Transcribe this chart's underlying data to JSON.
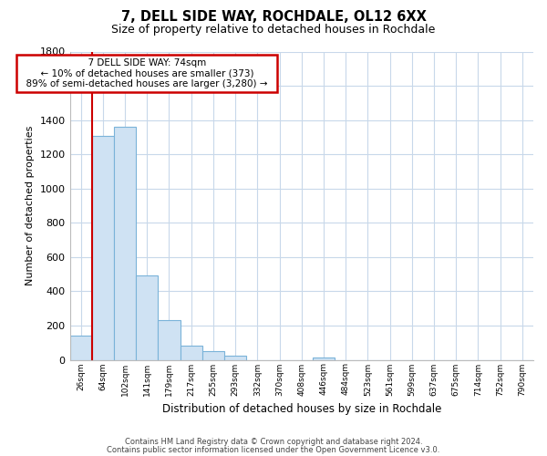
{
  "title": "7, DELL SIDE WAY, ROCHDALE, OL12 6XX",
  "subtitle": "Size of property relative to detached houses in Rochdale",
  "xlabel": "Distribution of detached houses by size in Rochdale",
  "ylabel": "Number of detached properties",
  "bar_labels": [
    "26sqm",
    "64sqm",
    "102sqm",
    "141sqm",
    "179sqm",
    "217sqm",
    "255sqm",
    "293sqm",
    "332sqm",
    "370sqm",
    "408sqm",
    "446sqm",
    "484sqm",
    "523sqm",
    "561sqm",
    "599sqm",
    "637sqm",
    "675sqm",
    "714sqm",
    "752sqm",
    "790sqm"
  ],
  "bar_values": [
    140,
    1310,
    1360,
    490,
    230,
    85,
    50,
    25,
    0,
    0,
    0,
    15,
    0,
    0,
    0,
    0,
    0,
    0,
    0,
    0,
    0
  ],
  "bar_color": "#cfe2f3",
  "bar_edge_color": "#7ab3d9",
  "ylim": [
    0,
    1800
  ],
  "yticks": [
    0,
    200,
    400,
    600,
    800,
    1000,
    1200,
    1400,
    1600,
    1800
  ],
  "property_line_color": "#cc0000",
  "annotation_title": "7 DELL SIDE WAY: 74sqm",
  "annotation_line1": "← 10% of detached houses are smaller (373)",
  "annotation_line2": "89% of semi-detached houses are larger (3,280) →",
  "annotation_box_color": "#ffffff",
  "annotation_box_edge": "#cc0000",
  "footer1": "Contains HM Land Registry data © Crown copyright and database right 2024.",
  "footer2": "Contains public sector information licensed under the Open Government Licence v3.0.",
  "background_color": "#ffffff",
  "grid_color": "#c8d8ea"
}
